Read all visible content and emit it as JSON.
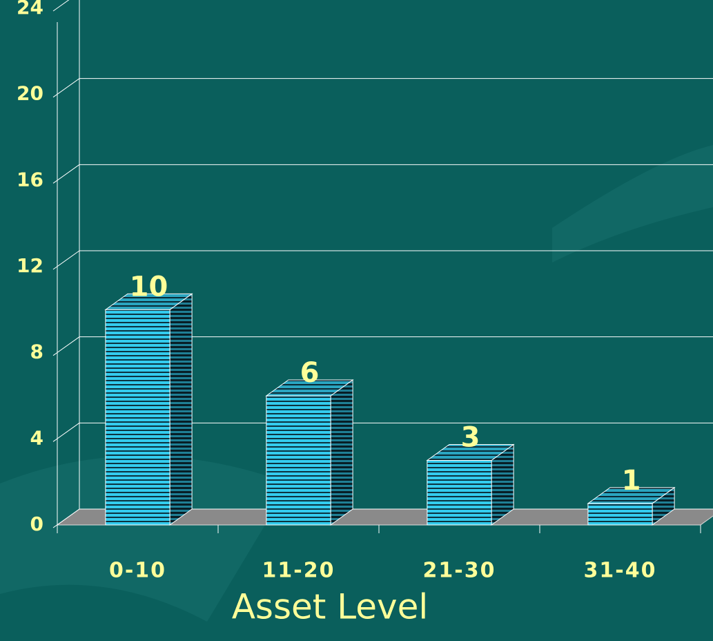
{
  "chart_data": {
    "type": "bar",
    "xlabel": "Asset Level",
    "categories": [
      "0-10",
      "11-20",
      "21-30",
      "31-40"
    ],
    "values": [
      10,
      6,
      3,
      1
    ],
    "color": "#33ccee",
    "ylim": [
      0,
      24
    ],
    "yticks": [
      0,
      4,
      8,
      12,
      16,
      20,
      24
    ],
    "grid": true
  }
}
